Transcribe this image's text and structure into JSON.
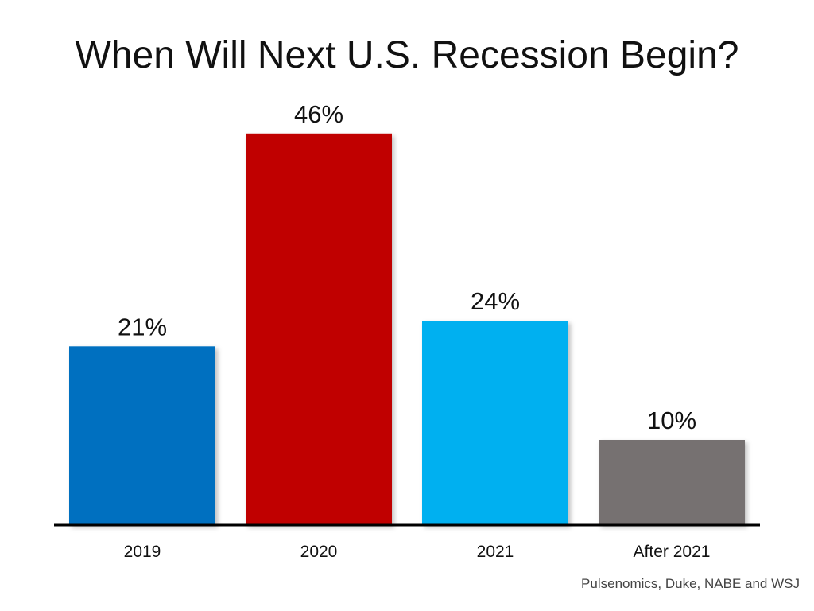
{
  "chart_data": {
    "type": "bar",
    "title": "When Will Next U.S. Recession Begin?",
    "categories": [
      "2019",
      "2020",
      "2021",
      "After 2021"
    ],
    "values": [
      21,
      46,
      24,
      10
    ],
    "value_labels": [
      "21%",
      "46%",
      "24%",
      "10%"
    ],
    "unit": "%",
    "colors": [
      "#0070C0",
      "#C00000",
      "#00B0F0",
      "#767171"
    ],
    "axis_color": "#000000",
    "ylim": [
      0,
      50
    ],
    "xlabel": "",
    "ylabel": "",
    "grid": false,
    "legend": "none"
  },
  "source": "Pulsenomics, Duke, NABE and WSJ"
}
